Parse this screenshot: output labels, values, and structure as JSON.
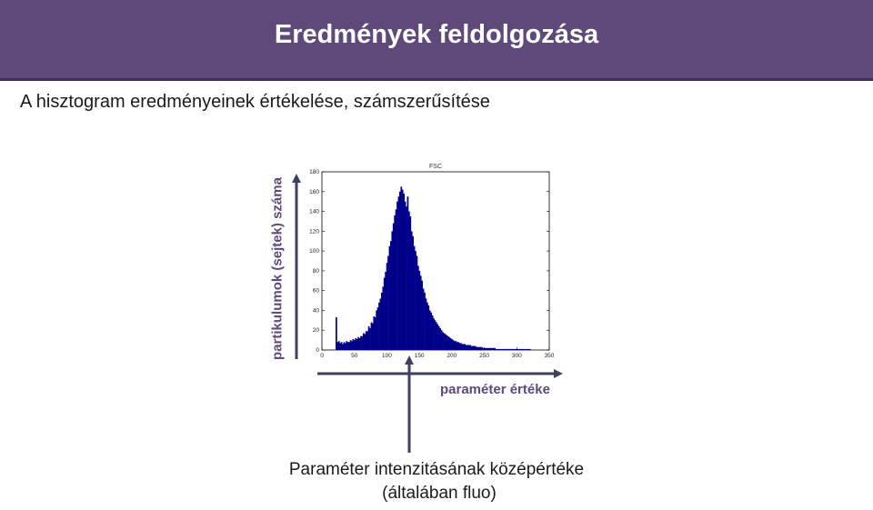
{
  "slide": {
    "title": "Eredmények feldolgozása",
    "subtitle": "A hisztogram eredményeinek értékelése, számszerűsítése",
    "y_annotation": "partikulumok (sejtek) száma",
    "x_annotation": "paraméter értéke",
    "bottom_line1": "Paraméter intenzitásának középértéke",
    "bottom_line2": "(általában fluo)"
  },
  "colors": {
    "title_bar": "#5f497a",
    "accent_text": "#5f497a",
    "histogram": "#00008b",
    "arrow": "#3f3f5f"
  },
  "chart_data": {
    "type": "bar",
    "title": "FSC",
    "xlim": [
      0,
      350
    ],
    "ylim": [
      0,
      180
    ],
    "x_ticks": [
      0,
      50,
      100,
      150,
      200,
      250,
      300,
      350
    ],
    "y_ticks": [
      0,
      20,
      40,
      60,
      80,
      100,
      120,
      140,
      160,
      180
    ],
    "x_tick_labels": [
      "0",
      "50",
      "100",
      "150",
      "200",
      "250",
      "300",
      "350"
    ],
    "y_tick_labels": [
      "0",
      "20",
      "40",
      "60",
      "80",
      "100",
      "120",
      "140",
      "160",
      "180"
    ],
    "peak_marker_x": 132,
    "x": [
      22,
      24,
      26,
      28,
      30,
      32,
      34,
      36,
      38,
      40,
      42,
      44,
      46,
      48,
      50,
      52,
      54,
      56,
      58,
      60,
      62,
      64,
      66,
      68,
      70,
      72,
      74,
      76,
      78,
      80,
      82,
      84,
      86,
      88,
      90,
      92,
      94,
      96,
      98,
      100,
      102,
      104,
      106,
      108,
      110,
      112,
      114,
      116,
      118,
      120,
      122,
      124,
      126,
      128,
      130,
      132,
      134,
      136,
      138,
      140,
      142,
      144,
      146,
      148,
      150,
      152,
      154,
      156,
      158,
      160,
      162,
      164,
      166,
      168,
      170,
      172,
      174,
      176,
      178,
      180,
      182,
      184,
      186,
      188,
      190,
      192,
      194,
      196,
      198,
      200,
      202,
      204,
      206,
      208,
      210,
      212,
      214,
      216,
      218,
      220,
      222,
      224,
      226,
      228,
      230,
      232,
      234,
      236,
      238,
      240,
      242,
      244,
      246,
      248,
      250,
      252,
      254,
      256,
      258,
      260,
      262,
      264,
      266,
      268,
      270,
      272,
      274,
      276,
      278,
      280,
      282,
      284,
      286,
      288,
      290,
      292,
      294,
      296,
      298,
      300,
      302,
      304,
      306,
      308,
      310,
      312,
      314,
      316,
      318,
      320
    ],
    "values": [
      33,
      8,
      9,
      7,
      8,
      6,
      8,
      7,
      9,
      8,
      8,
      10,
      9,
      11,
      10,
      12,
      11,
      13,
      12,
      14,
      14,
      17,
      16,
      19,
      19,
      24,
      22,
      28,
      27,
      34,
      33,
      40,
      43,
      48,
      52,
      58,
      64,
      73,
      79,
      88,
      95,
      105,
      110,
      120,
      128,
      136,
      142,
      150,
      155,
      160,
      165,
      162,
      158,
      150,
      145,
      155,
      140,
      135,
      120,
      115,
      105,
      100,
      95,
      85,
      80,
      75,
      70,
      62,
      58,
      52,
      48,
      45,
      40,
      38,
      35,
      32,
      30,
      28,
      26,
      24,
      22,
      20,
      18,
      17,
      16,
      15,
      14,
      13,
      12,
      11,
      10,
      9,
      9,
      8,
      8,
      7,
      7,
      6,
      6,
      6,
      5,
      5,
      5,
      5,
      4,
      4,
      4,
      4,
      3,
      3,
      3,
      3,
      3,
      2,
      2,
      2,
      2,
      2,
      2,
      2,
      2,
      2,
      2,
      1,
      1,
      1,
      1,
      1,
      1,
      1,
      1,
      1,
      1,
      1,
      1,
      1,
      1,
      1,
      1,
      1,
      1,
      1,
      1,
      1,
      1,
      1,
      1,
      1,
      1,
      1
    ]
  }
}
